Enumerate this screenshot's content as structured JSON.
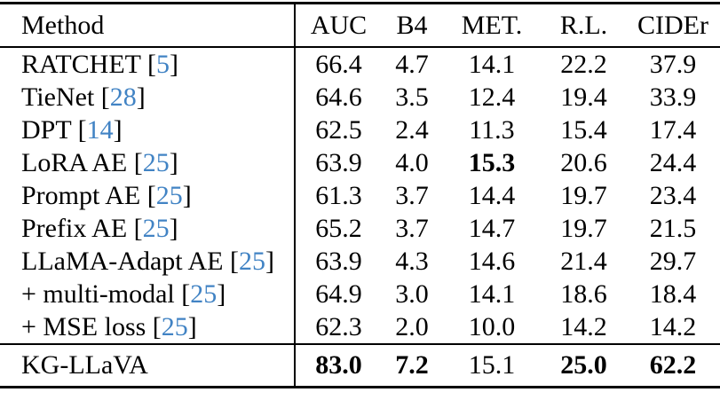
{
  "table": {
    "header": {
      "method_label": "Method",
      "metric_labels": [
        "AUC",
        "B4",
        "MET.",
        "R.L.",
        "CIDEr"
      ]
    },
    "cite_format": {
      "open": "[",
      "close": "]"
    },
    "rows": [
      {
        "method": "RATCHET",
        "cite": "5",
        "values": [
          "66.4",
          "4.7",
          "14.1",
          "22.2",
          "37.9"
        ],
        "bold": [
          false,
          false,
          false,
          false,
          false
        ]
      },
      {
        "method": "TieNet",
        "cite": "28",
        "values": [
          "64.6",
          "3.5",
          "12.4",
          "19.4",
          "33.9"
        ],
        "bold": [
          false,
          false,
          false,
          false,
          false
        ]
      },
      {
        "method": "DPT",
        "cite": "14",
        "values": [
          "62.5",
          "2.4",
          "11.3",
          "15.4",
          "17.4"
        ],
        "bold": [
          false,
          false,
          false,
          false,
          false
        ]
      },
      {
        "method": "LoRA AE",
        "cite": "25",
        "values": [
          "63.9",
          "4.0",
          "15.3",
          "20.6",
          "24.4"
        ],
        "bold": [
          false,
          false,
          true,
          false,
          false
        ]
      },
      {
        "method": "Prompt AE",
        "cite": "25",
        "values": [
          "61.3",
          "3.7",
          "14.4",
          "19.7",
          "23.4"
        ],
        "bold": [
          false,
          false,
          false,
          false,
          false
        ]
      },
      {
        "method": "Prefix AE",
        "cite": "25",
        "values": [
          "65.2",
          "3.7",
          "14.7",
          "19.7",
          "21.5"
        ],
        "bold": [
          false,
          false,
          false,
          false,
          false
        ]
      },
      {
        "method": "LLaMA-Adapt AE",
        "cite": "25",
        "values": [
          "63.9",
          "4.3",
          "14.6",
          "21.4",
          "29.7"
        ],
        "bold": [
          false,
          false,
          false,
          false,
          false
        ]
      },
      {
        "method": "+ multi-modal",
        "cite": "25",
        "values": [
          "64.9",
          "3.0",
          "14.1",
          "18.6",
          "18.4"
        ],
        "bold": [
          false,
          false,
          false,
          false,
          false
        ]
      },
      {
        "method": "+ MSE loss",
        "cite": "25",
        "values": [
          "62.3",
          "2.0",
          "10.0",
          "14.2",
          "14.2"
        ],
        "bold": [
          false,
          false,
          false,
          false,
          false
        ]
      }
    ],
    "final_row": {
      "method": "KG-LLaVA",
      "cite": null,
      "values": [
        "83.0",
        "7.2",
        "15.1",
        "25.0",
        "62.2"
      ],
      "bold": [
        true,
        true,
        false,
        true,
        true
      ]
    }
  },
  "colors": {
    "citation_blue": "#4183c4",
    "text": "#000000",
    "background": "#ffffff"
  }
}
